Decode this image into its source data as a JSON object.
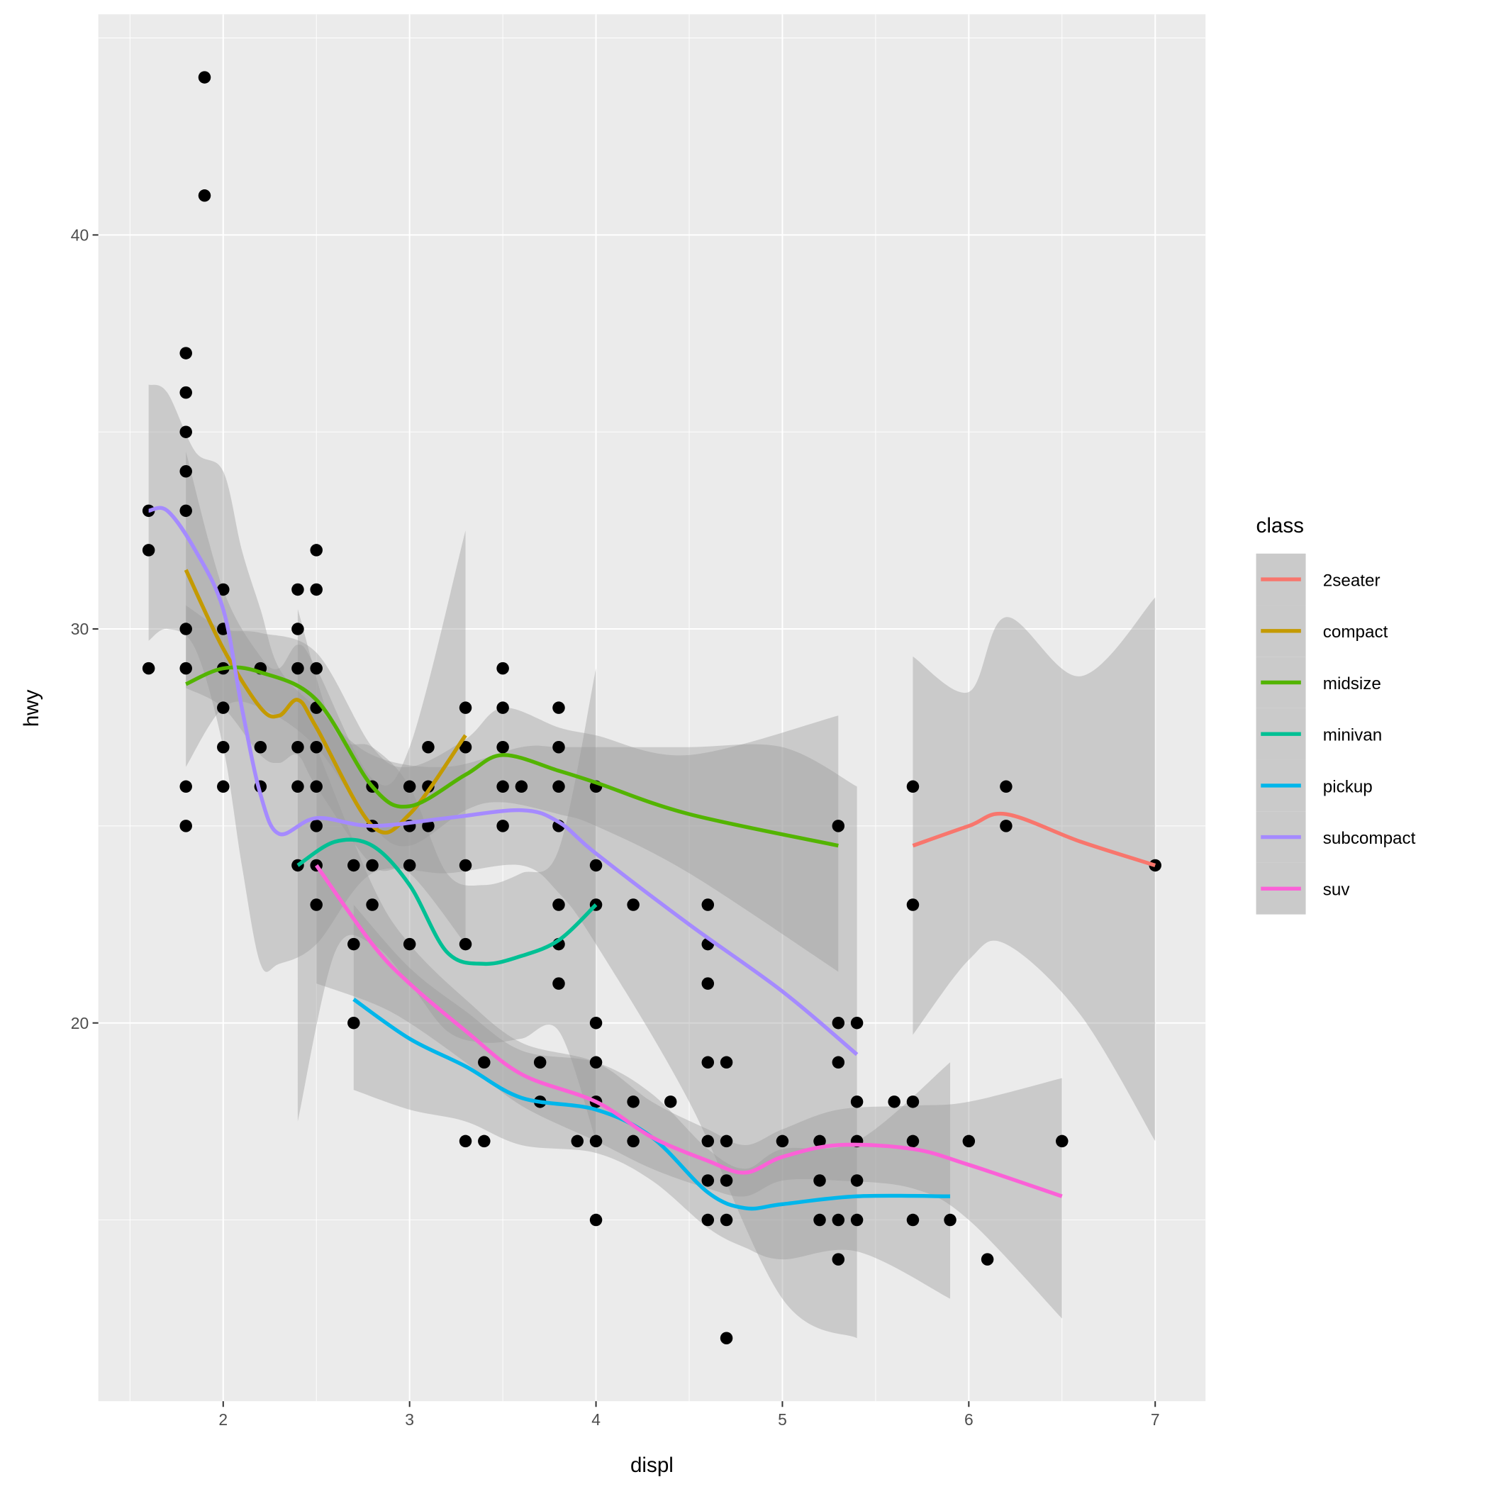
{
  "chart_data": {
    "type": "scatter",
    "title": "",
    "xlabel": "displ",
    "ylabel": "hwy",
    "xlim": [
      1.33,
      7.27
    ],
    "ylim": [
      10.4,
      45.6
    ],
    "x_ticks": [
      2,
      3,
      4,
      5,
      6,
      7
    ],
    "x_tick_labels": [
      "2",
      "3",
      "4",
      "5",
      "6",
      "7"
    ],
    "y_ticks": [
      20,
      30,
      40
    ],
    "y_tick_labels": [
      "20",
      "30",
      "40"
    ],
    "grid": true,
    "legend": {
      "title": "class",
      "placement": "right"
    },
    "points": [
      [
        1.6,
        33
      ],
      [
        1.6,
        32
      ],
      [
        1.6,
        29
      ],
      [
        1.8,
        37
      ],
      [
        1.8,
        36
      ],
      [
        1.8,
        35
      ],
      [
        1.8,
        34
      ],
      [
        1.8,
        33
      ],
      [
        1.8,
        30
      ],
      [
        1.8,
        29
      ],
      [
        1.8,
        26
      ],
      [
        1.8,
        25
      ],
      [
        1.9,
        44
      ],
      [
        1.9,
        41
      ],
      [
        2.0,
        31
      ],
      [
        2.0,
        30
      ],
      [
        2.0,
        29
      ],
      [
        2.0,
        28
      ],
      [
        2.0,
        27
      ],
      [
        2.0,
        26
      ],
      [
        2.2,
        29
      ],
      [
        2.2,
        27
      ],
      [
        2.2,
        26
      ],
      [
        2.4,
        31
      ],
      [
        2.4,
        30
      ],
      [
        2.4,
        29
      ],
      [
        2.4,
        27
      ],
      [
        2.4,
        26
      ],
      [
        2.4,
        24
      ],
      [
        2.5,
        32
      ],
      [
        2.5,
        31
      ],
      [
        2.5,
        29
      ],
      [
        2.5,
        28
      ],
      [
        2.5,
        27
      ],
      [
        2.5,
        26
      ],
      [
        2.5,
        25
      ],
      [
        2.5,
        24
      ],
      [
        2.5,
        23
      ],
      [
        2.7,
        24
      ],
      [
        2.7,
        22
      ],
      [
        2.7,
        20
      ],
      [
        2.8,
        26
      ],
      [
        2.8,
        25
      ],
      [
        2.8,
        24
      ],
      [
        2.8,
        23
      ],
      [
        3.0,
        26
      ],
      [
        3.0,
        25
      ],
      [
        3.0,
        24
      ],
      [
        3.0,
        22
      ],
      [
        3.1,
        27
      ],
      [
        3.1,
        26
      ],
      [
        3.1,
        25
      ],
      [
        3.3,
        28
      ],
      [
        3.3,
        27
      ],
      [
        3.3,
        24
      ],
      [
        3.3,
        22
      ],
      [
        3.3,
        17
      ],
      [
        3.4,
        19
      ],
      [
        3.4,
        17
      ],
      [
        3.5,
        29
      ],
      [
        3.5,
        28
      ],
      [
        3.5,
        27
      ],
      [
        3.5,
        26
      ],
      [
        3.5,
        25
      ],
      [
        3.6,
        26
      ],
      [
        3.7,
        19
      ],
      [
        3.7,
        18
      ],
      [
        3.8,
        28
      ],
      [
        3.8,
        27
      ],
      [
        3.8,
        26
      ],
      [
        3.8,
        25
      ],
      [
        3.8,
        23
      ],
      [
        3.8,
        22
      ],
      [
        3.8,
        21
      ],
      [
        3.9,
        17
      ],
      [
        4.0,
        26
      ],
      [
        4.0,
        24
      ],
      [
        4.0,
        23
      ],
      [
        4.0,
        20
      ],
      [
        4.0,
        19
      ],
      [
        4.0,
        18
      ],
      [
        4.0,
        17
      ],
      [
        4.0,
        15
      ],
      [
        4.2,
        23
      ],
      [
        4.2,
        18
      ],
      [
        4.2,
        17
      ],
      [
        4.4,
        18
      ],
      [
        4.6,
        23
      ],
      [
        4.6,
        22
      ],
      [
        4.6,
        21
      ],
      [
        4.6,
        19
      ],
      [
        4.6,
        17
      ],
      [
        4.6,
        16
      ],
      [
        4.6,
        15
      ],
      [
        4.7,
        19
      ],
      [
        4.7,
        17
      ],
      [
        4.7,
        16
      ],
      [
        4.7,
        15
      ],
      [
        4.7,
        12
      ],
      [
        5.0,
        17
      ],
      [
        5.2,
        17
      ],
      [
        5.2,
        16
      ],
      [
        5.2,
        15
      ],
      [
        5.3,
        25
      ],
      [
        5.3,
        20
      ],
      [
        5.3,
        19
      ],
      [
        5.3,
        15
      ],
      [
        5.3,
        14
      ],
      [
        5.4,
        20
      ],
      [
        5.4,
        18
      ],
      [
        5.4,
        17
      ],
      [
        5.4,
        16
      ],
      [
        5.4,
        15
      ],
      [
        5.6,
        18
      ],
      [
        5.7,
        26
      ],
      [
        5.7,
        23
      ],
      [
        5.7,
        18
      ],
      [
        5.7,
        17
      ],
      [
        5.7,
        15
      ],
      [
        5.9,
        15
      ],
      [
        6.0,
        17
      ],
      [
        6.1,
        14
      ],
      [
        6.2,
        26
      ],
      [
        6.2,
        25
      ],
      [
        6.5,
        17
      ],
      [
        7.0,
        24
      ]
    ],
    "series": [
      {
        "name": "2seater",
        "color": "#F8766D",
        "x": [
          5.7,
          6.0,
          6.2,
          6.6,
          7.0
        ],
        "y": [
          24.5,
          25.0,
          25.3,
          24.6,
          24.0
        ],
        "ymin": [
          19.7,
          21.6,
          22.0,
          20.2,
          17.0
        ],
        "ymax": [
          29.3,
          28.4,
          30.3,
          28.8,
          30.8
        ]
      },
      {
        "name": "compact",
        "color": "#C49A00",
        "x": [
          1.8,
          2.0,
          2.2,
          2.3,
          2.4,
          2.5,
          2.8,
          3.0,
          3.3
        ],
        "y": [
          31.5,
          29.5,
          28.0,
          27.8,
          28.2,
          27.5,
          25.0,
          25.3,
          27.3
        ],
        "ymin": [
          28.5,
          28.0,
          26.8,
          26.6,
          26.8,
          26.0,
          24.0,
          23.8,
          22.0
        ],
        "ymax": [
          34.5,
          31.0,
          29.3,
          29.0,
          29.6,
          29.0,
          26.2,
          27.0,
          32.5
        ]
      },
      {
        "name": "midsize",
        "color": "#53B400",
        "x": [
          1.8,
          2.0,
          2.2,
          2.5,
          2.8,
          3.0,
          3.3,
          3.5,
          3.8,
          4.0,
          4.5,
          5.3
        ],
        "y": [
          28.6,
          29.0,
          28.9,
          28.2,
          26.0,
          25.5,
          26.3,
          26.8,
          26.4,
          26.1,
          25.3,
          24.5
        ],
        "ymin": [
          26.5,
          28.0,
          28.0,
          27.0,
          25.0,
          24.5,
          25.4,
          25.6,
          25.3,
          25.0,
          23.8,
          21.3
        ],
        "ymax": [
          30.6,
          30.0,
          29.9,
          29.4,
          27.0,
          26.5,
          27.2,
          28.0,
          27.5,
          27.3,
          26.8,
          27.8
        ]
      },
      {
        "name": "minivan",
        "color": "#00C094",
        "x": [
          2.4,
          2.6,
          2.8,
          3.0,
          3.2,
          3.4,
          3.6,
          3.8,
          4.0
        ],
        "y": [
          24.0,
          24.6,
          24.5,
          23.5,
          21.8,
          21.5,
          21.7,
          22.1,
          23.0
        ],
        "ymin": [
          17.5,
          21.8,
          22.0,
          21.0,
          19.8,
          19.5,
          19.6,
          19.8,
          17.0
        ],
        "ymax": [
          30.5,
          27.4,
          27.0,
          26.0,
          23.8,
          23.5,
          23.8,
          24.4,
          29.0
        ]
      },
      {
        "name": "pickup",
        "color": "#00B6EB",
        "x": [
          2.7,
          3.0,
          3.3,
          3.6,
          4.0,
          4.3,
          4.6,
          4.8,
          5.0,
          5.4,
          5.9
        ],
        "y": [
          20.6,
          19.6,
          18.9,
          18.1,
          17.8,
          17.1,
          15.7,
          15.3,
          15.4,
          15.6,
          15.6
        ],
        "ymin": [
          18.3,
          17.8,
          17.5,
          16.9,
          16.7,
          16.0,
          14.8,
          14.3,
          14.0,
          14.2,
          13.0
        ],
        "ymax": [
          23.0,
          21.4,
          20.3,
          19.3,
          19.0,
          18.2,
          16.8,
          16.3,
          16.8,
          17.0,
          19.0
        ]
      },
      {
        "name": "subcompact",
        "color": "#A58AFF",
        "x": [
          1.6,
          1.7,
          1.85,
          2.0,
          2.1,
          2.2,
          2.3,
          2.5,
          2.8,
          3.2,
          3.6,
          3.8,
          4.0,
          4.5,
          5.0,
          5.4
        ],
        "y": [
          33.0,
          33.0,
          32.0,
          30.5,
          28.0,
          25.8,
          24.8,
          25.2,
          25.0,
          25.2,
          25.4,
          25.1,
          24.3,
          22.5,
          20.8,
          19.2
        ],
        "ymin": [
          29.7,
          30.0,
          29.5,
          27.0,
          24.0,
          21.5,
          21.5,
          22.0,
          23.8,
          23.8,
          24.0,
          23.3,
          22.0,
          18.0,
          13.0,
          12.0
        ],
        "ymax": [
          36.2,
          36.0,
          34.5,
          34.0,
          32.0,
          30.5,
          29.0,
          28.0,
          26.8,
          26.5,
          27.0,
          27.0,
          27.0,
          27.0,
          27.0,
          26.0
        ]
      },
      {
        "name": "suv",
        "color": "#FB61D7",
        "x": [
          2.5,
          2.8,
          3.0,
          3.3,
          3.6,
          4.0,
          4.3,
          4.6,
          4.8,
          5.0,
          5.3,
          5.7,
          6.0,
          6.5
        ],
        "y": [
          24.0,
          22.0,
          21.0,
          19.8,
          18.7,
          18.0,
          17.1,
          16.5,
          16.2,
          16.6,
          16.9,
          16.8,
          16.4,
          15.6
        ],
        "ymin": [
          21.0,
          20.5,
          20.0,
          19.0,
          17.9,
          17.0,
          16.3,
          15.8,
          15.6,
          16.0,
          16.0,
          15.8,
          15.0,
          12.5
        ],
        "ymax": [
          27.0,
          23.5,
          22.0,
          20.6,
          19.5,
          19.0,
          18.0,
          17.3,
          16.9,
          17.3,
          17.8,
          17.9,
          18.0,
          18.6
        ]
      }
    ]
  }
}
